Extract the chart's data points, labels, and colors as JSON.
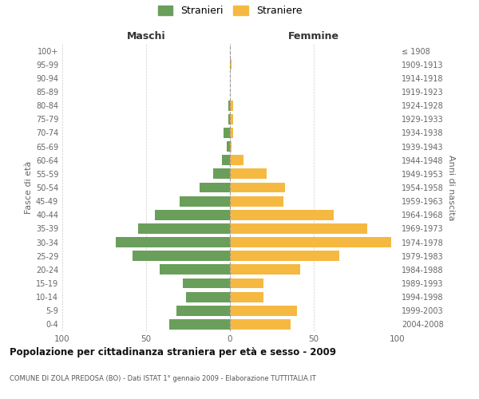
{
  "age_groups": [
    "0-4",
    "5-9",
    "10-14",
    "15-19",
    "20-24",
    "25-29",
    "30-34",
    "35-39",
    "40-44",
    "45-49",
    "50-54",
    "55-59",
    "60-64",
    "65-69",
    "70-74",
    "75-79",
    "80-84",
    "85-89",
    "90-94",
    "95-99",
    "100+"
  ],
  "birth_years": [
    "2004-2008",
    "1999-2003",
    "1994-1998",
    "1989-1993",
    "1984-1988",
    "1979-1983",
    "1974-1978",
    "1969-1973",
    "1964-1968",
    "1959-1963",
    "1954-1958",
    "1949-1953",
    "1944-1948",
    "1939-1943",
    "1934-1938",
    "1929-1933",
    "1924-1928",
    "1919-1923",
    "1914-1918",
    "1909-1913",
    "≤ 1908"
  ],
  "maschi": [
    36,
    32,
    26,
    28,
    42,
    58,
    68,
    55,
    45,
    30,
    18,
    10,
    5,
    2,
    4,
    1,
    1,
    0,
    0,
    0,
    0
  ],
  "femmine": [
    36,
    40,
    20,
    20,
    42,
    65,
    96,
    82,
    62,
    32,
    33,
    22,
    8,
    1,
    2,
    2,
    2,
    0,
    0,
    1,
    0
  ],
  "maschi_color": "#6a9f5b",
  "femmine_color": "#f5b942",
  "title": "Popolazione per cittadinanza straniera per età e sesso - 2009",
  "subtitle": "COMUNE DI ZOLA PREDOSA (BO) - Dati ISTAT 1° gennaio 2009 - Elaborazione TUTTITALIA.IT",
  "ylabel_left": "Fasce di età",
  "ylabel_right": "Anni di nascita",
  "xlabel_left": "Maschi",
  "xlabel_right": "Femmine",
  "legend_maschi": "Stranieri",
  "legend_femmine": "Straniere",
  "xlim": 100,
  "background_color": "#ffffff",
  "grid_color": "#cccccc"
}
